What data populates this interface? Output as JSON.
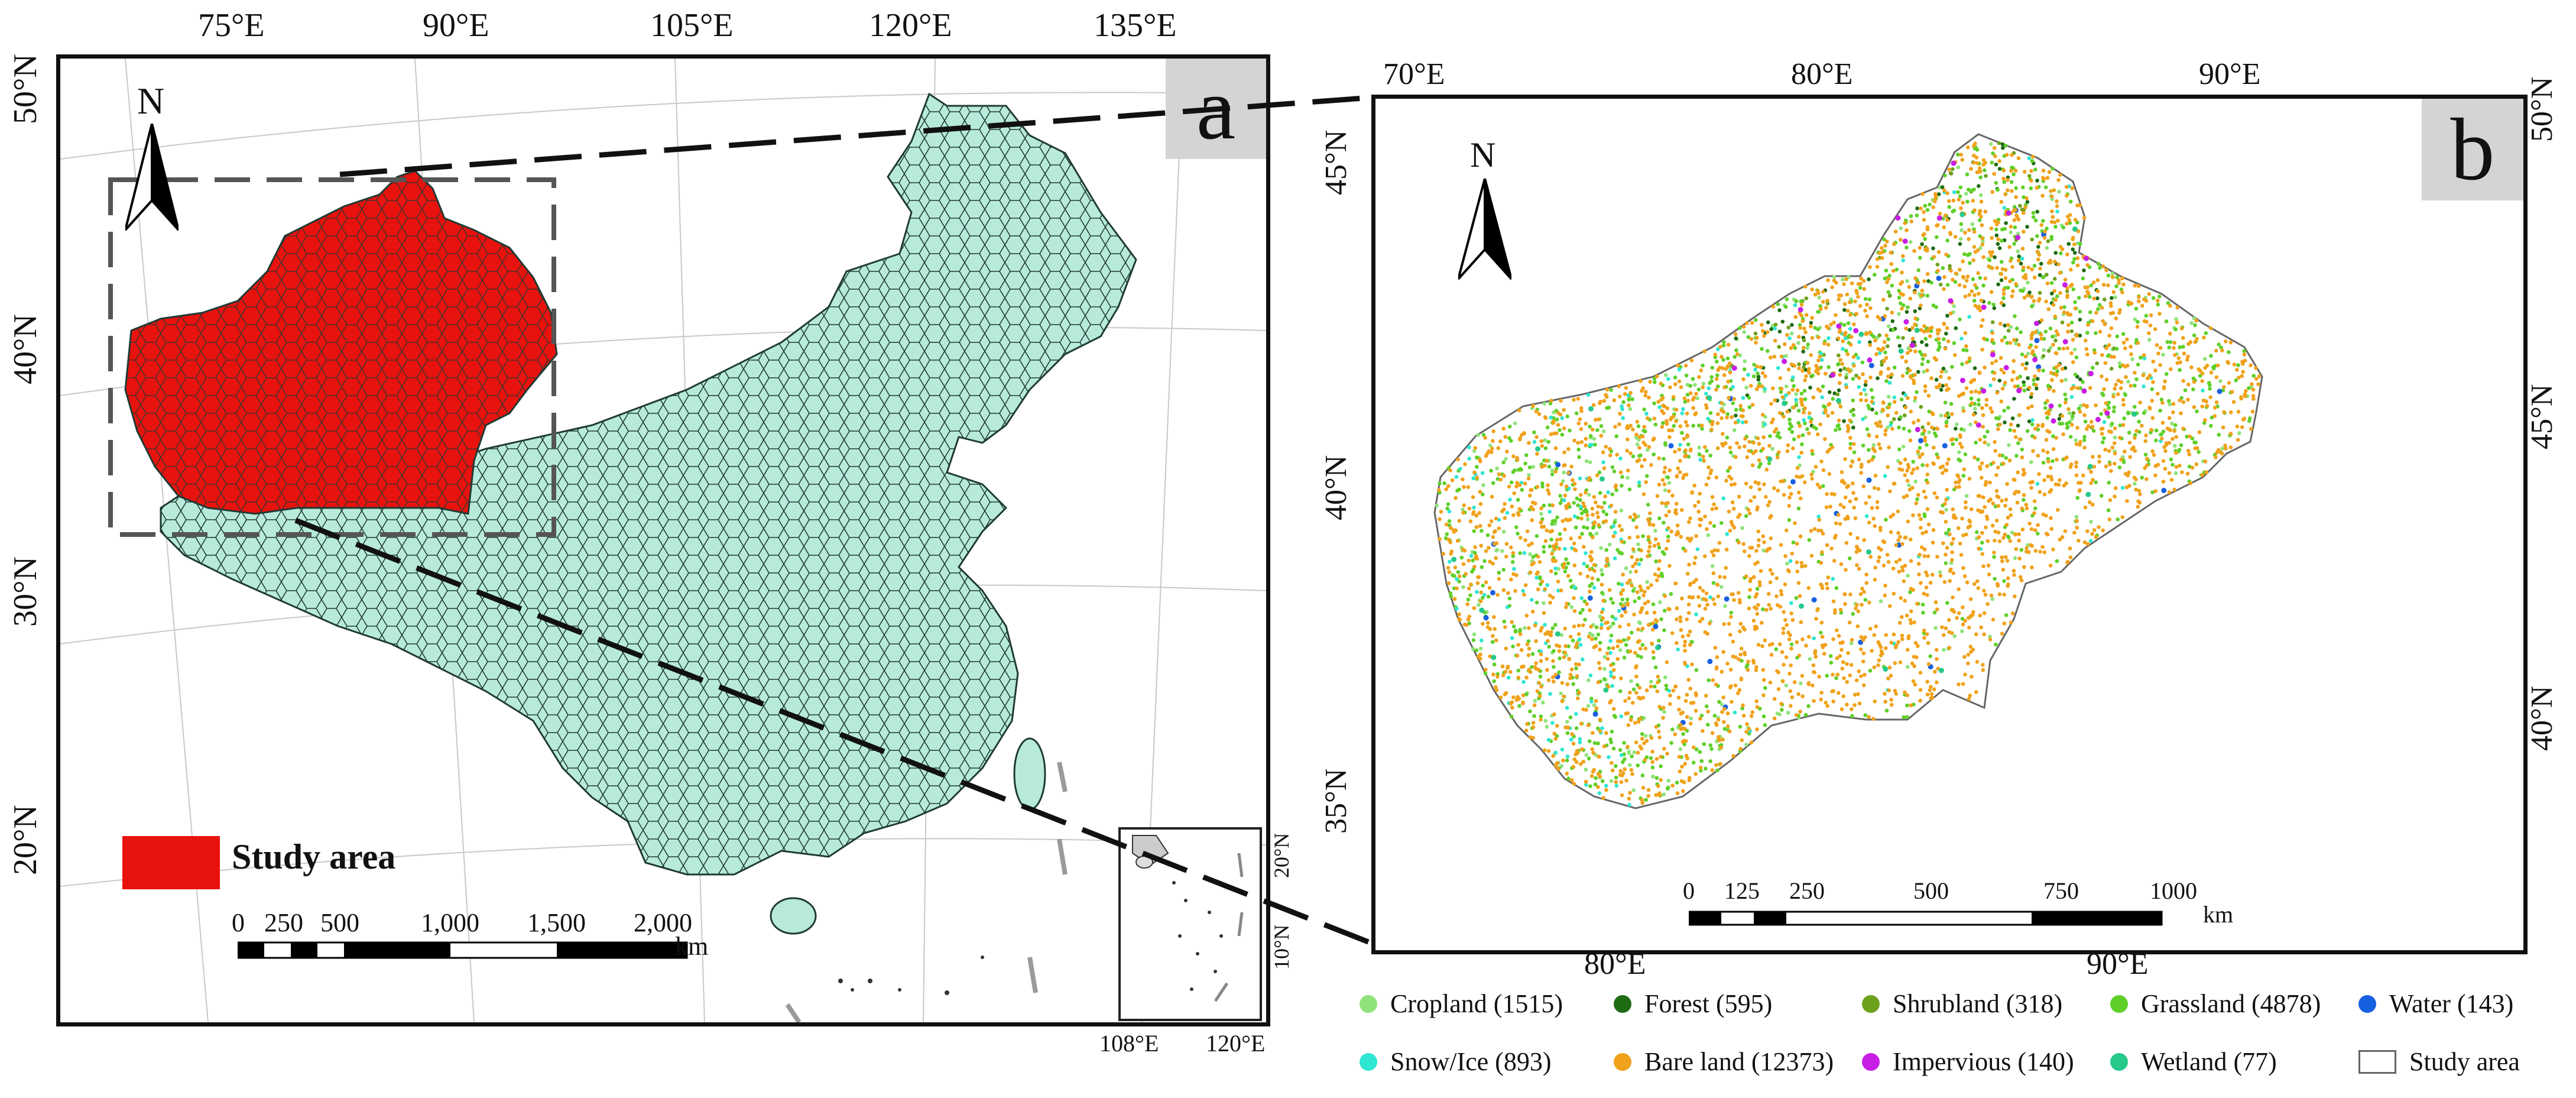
{
  "panel_a": {
    "letter": "a",
    "north_label": "N",
    "top_lon_labels": [
      "75°E",
      "90°E",
      "105°E",
      "120°E",
      "135°E"
    ],
    "left_lat_labels": [
      "50°N",
      "40°N",
      "30°N",
      "20°N"
    ],
    "legend_label": "Study area",
    "scale_labels": [
      "0",
      "250",
      "500",
      "1,000",
      "1,500",
      "2,000"
    ],
    "scale_unit": "km",
    "inset_lat_labels": [
      "20°N",
      "10°N"
    ],
    "inset_lon_labels": [
      "108°E",
      "120°E"
    ],
    "colors": {
      "study_area": "#e8120e",
      "china_fill": "#b7eadb",
      "hex_line": "#1f3a33"
    }
  },
  "panel_b": {
    "letter": "b",
    "north_label": "N",
    "top_lon_labels": [
      "70°E",
      "80°E",
      "90°E"
    ],
    "bottom_lon_labels": [
      "80°E",
      "90°E"
    ],
    "left_lat_labels": [
      "45°N",
      "40°N",
      "35°N"
    ],
    "right_lat_labels": [
      "50°N",
      "45°N",
      "40°N"
    ],
    "scale_labels": [
      "0",
      "125",
      "250",
      "500",
      "750",
      "1000"
    ],
    "scale_unit": "km"
  },
  "legend": {
    "items": [
      {
        "label": "Cropland (1515)",
        "color": "#8fe37a",
        "count": 1515
      },
      {
        "label": "Forest (595)",
        "color": "#1e6b14",
        "count": 595
      },
      {
        "label": "Shrubland (318)",
        "color": "#6ea21c",
        "count": 318
      },
      {
        "label": "Grassland (4878)",
        "color": "#5fd02a",
        "count": 4878
      },
      {
        "label": "Water (143)",
        "color": "#1760e0",
        "count": 143
      },
      {
        "label": "Snow/Ice (893)",
        "color": "#2ee6d2",
        "count": 893
      },
      {
        "label": "Bare land (12373)",
        "color": "#f0a21c",
        "count": 12373
      },
      {
        "label": "Impervious (140)",
        "color": "#c81ee6",
        "count": 140
      },
      {
        "label": "Wetland (77)",
        "color": "#27c98a",
        "count": 77
      }
    ],
    "study_area_label": "Study area"
  }
}
